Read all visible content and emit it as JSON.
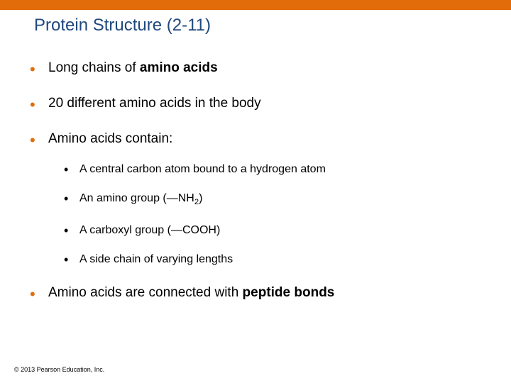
{
  "colors": {
    "accent": "#e36c0a",
    "title": "#1f497d",
    "bullet1": "#e36c0a",
    "text": "#000000"
  },
  "title": "Protein Structure (2-11)",
  "bullets": [
    {
      "pre": "Long chains of ",
      "bold": "amino acids",
      "post": ""
    },
    {
      "pre": "20 different amino acids in the body",
      "bold": "",
      "post": ""
    },
    {
      "pre": "Amino acids contain:",
      "bold": "",
      "post": "",
      "sub": [
        "A central carbon atom bound to a hydrogen atom",
        "An amino group (—NH",
        "A carboxyl group (—COOH)",
        "A side chain of varying lengths"
      ],
      "sub_suffix": {
        "1": "2)"
      }
    },
    {
      "pre": "Amino acids are connected with ",
      "bold": "peptide bonds",
      "post": ""
    }
  ],
  "footer": "© 2013 Pearson Education, Inc."
}
